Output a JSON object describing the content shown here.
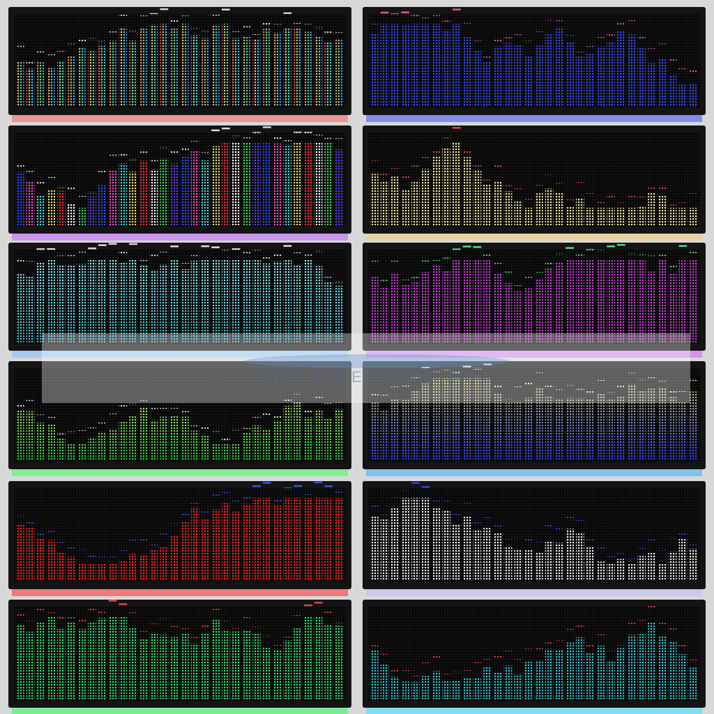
{
  "watermark": "Tools And Electronic Store"
}
